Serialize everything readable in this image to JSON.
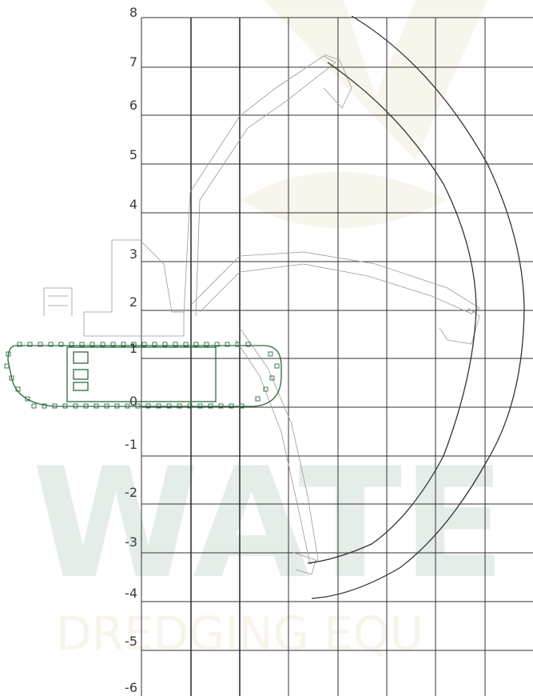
{
  "watermark": {
    "word": "WATE",
    "tagline": "DREDGING EQU",
    "color": "#2f6f4e"
  },
  "chart_data": {
    "type": "working-range-diagram",
    "y_axis": {
      "ticks": [
        "8",
        "7",
        "6",
        "5",
        "4",
        "3",
        "2",
        "1",
        "0",
        "-1",
        "-2",
        "-3",
        "-4",
        "-5",
        "-6"
      ],
      "ylim": [
        -6,
        8
      ]
    },
    "grid": true,
    "curves": [
      {
        "name": "",
        "color": "#333333"
      },
      {
        "name": "",
        "color": "#333333"
      }
    ],
    "colors": {
      "grid": "#333333",
      "track": "#2e6b3c",
      "machine": "#9a9a9a"
    }
  }
}
